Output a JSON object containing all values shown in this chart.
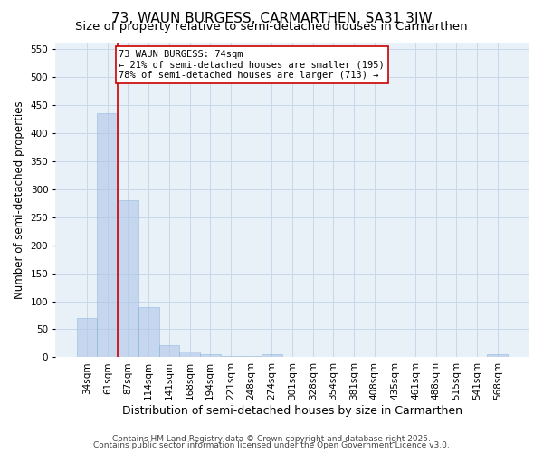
{
  "title": "73, WAUN BURGESS, CARMARTHEN, SA31 3JW",
  "subtitle": "Size of property relative to semi-detached houses in Carmarthen",
  "xlabel": "Distribution of semi-detached houses by size in Carmarthen",
  "ylabel": "Number of semi-detached properties",
  "categories": [
    "34sqm",
    "61sqm",
    "87sqm",
    "114sqm",
    "141sqm",
    "168sqm",
    "194sqm",
    "221sqm",
    "248sqm",
    "274sqm",
    "301sqm",
    "328sqm",
    "354sqm",
    "381sqm",
    "408sqm",
    "435sqm",
    "461sqm",
    "488sqm",
    "515sqm",
    "541sqm",
    "568sqm"
  ],
  "values": [
    70,
    435,
    280,
    90,
    22,
    10,
    5,
    3,
    2,
    5,
    0,
    0,
    0,
    0,
    0,
    0,
    0,
    0,
    0,
    0,
    5
  ],
  "bar_color": "#aec6e8",
  "bar_edge_color": "#7aafd4",
  "bar_alpha": 0.6,
  "grid_color": "#c8d8ea",
  "bg_color": "#e8f0f8",
  "fig_bg_color": "#ffffff",
  "vline_x": 1.5,
  "vline_color": "#cc0000",
  "vline_linewidth": 1.2,
  "annotation_line1": "73 WAUN BURGESS: 74sqm",
  "annotation_line2": "← 21% of semi-detached houses are smaller (195)",
  "annotation_line3": "78% of semi-detached houses are larger (713) →",
  "annotation_box_color": "white",
  "annotation_box_edge": "#cc0000",
  "ylim": [
    0,
    560
  ],
  "yticks": [
    0,
    50,
    100,
    150,
    200,
    250,
    300,
    350,
    400,
    450,
    500,
    550
  ],
  "footer_line1": "Contains HM Land Registry data © Crown copyright and database right 2025.",
  "footer_line2": "Contains public sector information licensed under the Open Government Licence v3.0.",
  "title_fontsize": 11,
  "subtitle_fontsize": 9.5,
  "xlabel_fontsize": 9,
  "ylabel_fontsize": 8.5,
  "tick_fontsize": 7.5,
  "annotation_fontsize": 7.5,
  "footer_fontsize": 6.5
}
